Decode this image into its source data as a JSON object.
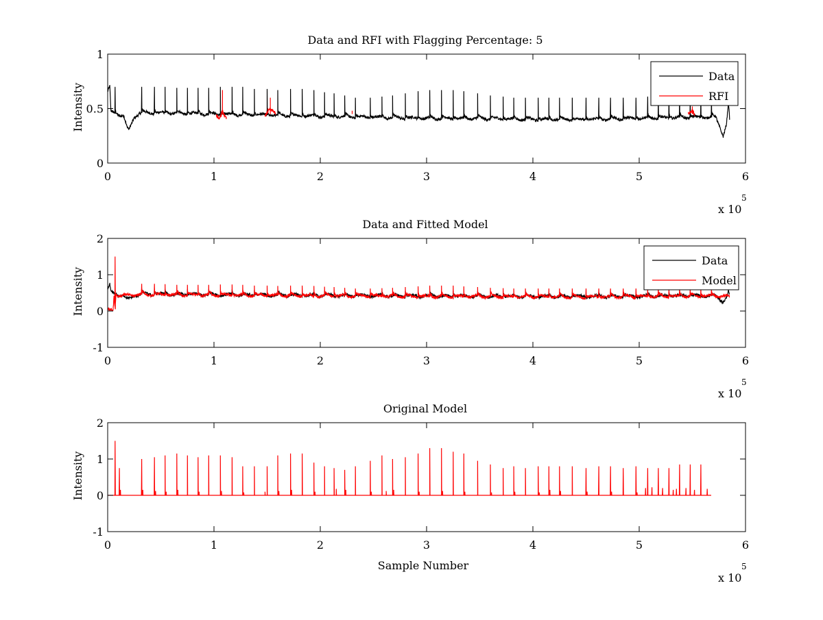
{
  "figure": {
    "background": "#ffffff"
  },
  "chart_data": [
    {
      "type": "line",
      "title": "Data and RFI with Flagging Percentage: 5",
      "xlabel": "",
      "ylabel": "Intensity",
      "xlim": [
        0,
        6
      ],
      "ylim": [
        0,
        1
      ],
      "xticks": [
        "0",
        "1",
        "2",
        "3",
        "4",
        "5",
        "6"
      ],
      "yticks": [
        "0",
        "0.5",
        "1"
      ],
      "x_exponent": {
        "base": "x 10",
        "power": "5"
      },
      "grid": false,
      "legend": {
        "placement": "top-right",
        "entries": [
          "Data",
          "RFI"
        ]
      },
      "series": [
        {
          "name": "Data",
          "color": "#000000",
          "baseline_points": [
            [
              0,
              0.66
            ],
            [
              0.02,
              0.7
            ],
            [
              0.03,
              0.47
            ],
            [
              0.1,
              0.44
            ],
            [
              0.15,
              0.44
            ],
            [
              0.18,
              0.33
            ],
            [
              0.2,
              0.3
            ],
            [
              0.25,
              0.42
            ],
            [
              0.3,
              0.46
            ],
            [
              0.5,
              0.46
            ],
            [
              1.0,
              0.45
            ],
            [
              1.5,
              0.44
            ],
            [
              2.0,
              0.43
            ],
            [
              2.5,
              0.42
            ],
            [
              3.0,
              0.41
            ],
            [
              3.5,
              0.41
            ],
            [
              4.0,
              0.4
            ],
            [
              4.5,
              0.4
            ],
            [
              5.0,
              0.41
            ],
            [
              5.5,
              0.42
            ],
            [
              5.72,
              0.42
            ],
            [
              5.76,
              0.33
            ],
            [
              5.79,
              0.25
            ],
            [
              5.82,
              0.35
            ],
            [
              5.84,
              0.55
            ],
            [
              5.85,
              0.4
            ]
          ],
          "spike_x": [
            0.07,
            0.32,
            0.44,
            0.54,
            0.65,
            0.75,
            0.85,
            0.95,
            1.06,
            1.17,
            1.27,
            1.38,
            1.5,
            1.6,
            1.72,
            1.83,
            1.94,
            2.04,
            2.13,
            2.23,
            2.33,
            2.47,
            2.58,
            2.68,
            2.8,
            2.92,
            3.03,
            3.14,
            3.25,
            3.35,
            3.48,
            3.6,
            3.72,
            3.82,
            3.93,
            4.05,
            4.15,
            4.25,
            4.37,
            4.5,
            4.62,
            4.73,
            4.85,
            4.97,
            5.08,
            5.18,
            5.28,
            5.38,
            5.48,
            5.58,
            5.68
          ],
          "spike_peak": [
            0.7,
            0.7,
            0.7,
            0.7,
            0.69,
            0.69,
            0.69,
            0.69,
            0.7,
            0.7,
            0.7,
            0.68,
            0.68,
            0.67,
            0.68,
            0.68,
            0.67,
            0.65,
            0.64,
            0.62,
            0.6,
            0.6,
            0.61,
            0.62,
            0.64,
            0.66,
            0.67,
            0.67,
            0.67,
            0.66,
            0.64,
            0.62,
            0.61,
            0.6,
            0.6,
            0.6,
            0.6,
            0.6,
            0.6,
            0.6,
            0.6,
            0.6,
            0.6,
            0.6,
            0.61,
            0.62,
            0.62,
            0.62,
            0.6,
            0.6,
            0.6
          ]
        },
        {
          "name": "RFI",
          "color": "#ff0000",
          "segments": [
            [
              [
                1.02,
                0.44
              ],
              [
                1.04,
                0.41
              ],
              [
                1.06,
                0.42
              ],
              [
                1.08,
                0.48
              ],
              [
                1.1,
                0.43
              ],
              [
                1.12,
                0.41
              ]
            ],
            [
              [
                1.48,
                0.43
              ],
              [
                1.5,
                0.46
              ],
              [
                1.52,
                0.5
              ],
              [
                1.55,
                0.48
              ],
              [
                1.58,
                0.46
              ]
            ],
            [
              [
                5.46,
                0.45
              ],
              [
                5.5,
                0.48
              ],
              [
                5.52,
                0.44
              ]
            ]
          ],
          "spike_x": [
            1.08,
            1.53,
            2.3,
            5.5
          ],
          "spike_peak": [
            0.67,
            0.6,
            0.48,
            0.52
          ]
        }
      ]
    },
    {
      "type": "line",
      "title": "Data and Fitted Model",
      "xlabel": "",
      "ylabel": "Intensity",
      "xlim": [
        0,
        6
      ],
      "ylim": [
        -1,
        2
      ],
      "xticks": [
        "0",
        "1",
        "2",
        "3",
        "4",
        "5",
        "6"
      ],
      "yticks": [
        "-1",
        "0",
        "1",
        "2"
      ],
      "x_exponent": {
        "base": "x 10",
        "power": "5"
      },
      "grid": false,
      "legend": {
        "placement": "top-right",
        "entries": [
          "Data",
          "Model"
        ]
      },
      "series": [
        {
          "name": "Data",
          "color": "#000000",
          "baseline_points": [
            [
              0,
              0.62
            ],
            [
              0.02,
              0.72
            ],
            [
              0.03,
              0.5
            ],
            [
              0.1,
              0.44
            ],
            [
              0.15,
              0.44
            ],
            [
              0.18,
              0.34
            ],
            [
              0.2,
              0.32
            ],
            [
              0.25,
              0.42
            ],
            [
              0.3,
              0.46
            ],
            [
              0.5,
              0.46
            ],
            [
              1.0,
              0.45
            ],
            [
              1.5,
              0.44
            ],
            [
              2.0,
              0.43
            ],
            [
              2.5,
              0.42
            ],
            [
              3.0,
              0.41
            ],
            [
              3.5,
              0.41
            ],
            [
              4.0,
              0.4
            ],
            [
              4.5,
              0.4
            ],
            [
              5.0,
              0.41
            ],
            [
              5.5,
              0.42
            ],
            [
              5.72,
              0.42
            ],
            [
              5.76,
              0.33
            ],
            [
              5.79,
              0.26
            ],
            [
              5.82,
              0.36
            ],
            [
              5.84,
              0.52
            ],
            [
              5.85,
              0.42
            ]
          ],
          "spike_x": [
            0.32,
            0.44,
            0.54,
            0.75,
            0.95,
            1.17,
            1.38,
            1.6,
            1.83,
            2.04,
            2.33,
            2.58,
            2.8,
            3.03,
            3.25,
            3.48,
            3.72,
            3.93,
            4.15,
            4.37,
            4.62,
            4.85,
            5.08,
            5.28,
            5.48
          ],
          "spike_peak": [
            0.62,
            0.62,
            0.61,
            0.6,
            0.6,
            0.6,
            0.58,
            0.57,
            0.57,
            0.56,
            0.54,
            0.54,
            0.55,
            0.56,
            0.56,
            0.55,
            0.53,
            0.52,
            0.52,
            0.52,
            0.52,
            0.52,
            0.53,
            0.53,
            0.53
          ]
        },
        {
          "name": "Model",
          "color": "#ff0000",
          "baseline_points": [
            [
              0,
              0.02
            ],
            [
              0.05,
              0.02
            ],
            [
              0.06,
              0.4
            ],
            [
              0.07,
              0.05
            ],
            [
              0.08,
              0.45
            ],
            [
              0.1,
              0.42
            ],
            [
              0.3,
              0.45
            ],
            [
              0.5,
              0.45
            ],
            [
              1.0,
              0.44
            ],
            [
              1.5,
              0.43
            ],
            [
              2.0,
              0.42
            ],
            [
              2.5,
              0.41
            ],
            [
              3.0,
              0.4
            ],
            [
              3.5,
              0.4
            ],
            [
              4.0,
              0.39
            ],
            [
              4.5,
              0.39
            ],
            [
              5.0,
              0.4
            ],
            [
              5.5,
              0.41
            ],
            [
              5.72,
              0.41
            ],
            [
              5.85,
              0.41
            ]
          ],
          "spike_x": [
            0.07,
            0.32,
            0.44,
            0.54,
            0.65,
            0.75,
            0.85,
            0.95,
            1.06,
            1.17,
            1.27,
            1.38,
            1.5,
            1.6,
            1.72,
            1.83,
            1.94,
            2.04,
            2.13,
            2.23,
            2.33,
            2.47,
            2.58,
            2.68,
            2.8,
            2.92,
            3.03,
            3.14,
            3.25,
            3.35,
            3.48,
            3.6,
            3.72,
            3.82,
            3.93,
            4.05,
            4.15,
            4.25,
            4.37,
            4.5,
            4.62,
            4.73,
            4.85,
            4.97,
            5.08,
            5.18,
            5.28,
            5.38,
            5.48,
            5.58,
            5.68
          ],
          "spike_peak": [
            1.5,
            0.75,
            0.75,
            0.74,
            0.72,
            0.72,
            0.72,
            0.72,
            0.73,
            0.73,
            0.72,
            0.7,
            0.7,
            0.69,
            0.7,
            0.7,
            0.69,
            0.67,
            0.66,
            0.64,
            0.62,
            0.62,
            0.63,
            0.64,
            0.66,
            0.68,
            0.7,
            0.7,
            0.7,
            0.68,
            0.66,
            0.64,
            0.63,
            0.62,
            0.62,
            0.62,
            0.62,
            0.62,
            0.62,
            0.62,
            0.62,
            0.62,
            0.62,
            0.62,
            0.63,
            0.64,
            0.64,
            0.64,
            0.62,
            0.62,
            0.62
          ]
        }
      ]
    },
    {
      "type": "line",
      "title": "Original Model",
      "xlabel": "Sample Number",
      "ylabel": "Intensity",
      "xlim": [
        0,
        6
      ],
      "ylim": [
        -1,
        2
      ],
      "xticks": [
        "0",
        "1",
        "2",
        "3",
        "4",
        "5",
        "6"
      ],
      "yticks": [
        "-1",
        "0",
        "1",
        "2"
      ],
      "x_exponent": {
        "base": "x 10",
        "power": "5"
      },
      "grid": false,
      "legend": null,
      "series": [
        {
          "name": "",
          "color": "#ff0000",
          "baseline_points": [
            [
              0,
              0
            ],
            [
              5.85,
              0
            ]
          ],
          "spike_x": [
            0.07,
            0.11,
            0.32,
            0.44,
            0.54,
            0.65,
            0.75,
            0.85,
            0.95,
            1.06,
            1.17,
            1.27,
            1.38,
            1.5,
            1.6,
            1.72,
            1.83,
            1.94,
            2.04,
            2.13,
            2.23,
            2.33,
            2.47,
            2.58,
            2.68,
            2.8,
            2.92,
            3.03,
            3.14,
            3.25,
            3.35,
            3.48,
            3.6,
            3.72,
            3.82,
            3.93,
            4.05,
            4.15,
            4.25,
            4.37,
            4.5,
            4.62,
            4.73,
            4.85,
            4.97,
            5.08,
            5.18,
            5.28,
            5.38,
            5.48,
            5.58,
            5.68
          ],
          "spike_peak": [
            1.5,
            0.75,
            1.0,
            1.05,
            1.1,
            1.15,
            1.1,
            1.05,
            1.1,
            1.1,
            1.05,
            0.8,
            0.8,
            0.8,
            1.1,
            1.15,
            1.15,
            0.9,
            0.8,
            0.75,
            0.7,
            0.8,
            0.95,
            1.1,
            1.0,
            1.05,
            1.15,
            1.3,
            1.3,
            1.2,
            1.15,
            0.95,
            0.85,
            0.75,
            0.8,
            0.75,
            0.8,
            0.8,
            0.8,
            0.8,
            0.75,
            0.8,
            0.8,
            0.75,
            0.8,
            0.75,
            0.75,
            0.75,
            0.85,
            0.85,
            0.85
          ],
          "secondary_spike_x": [
            0.12,
            0.33,
            0.45,
            0.55,
            0.66,
            0.86,
            1.07,
            1.28,
            1.48,
            1.61,
            1.73,
            1.95,
            2.15,
            2.24,
            2.48,
            2.62,
            2.69,
            2.93,
            3.15,
            3.36,
            3.61,
            3.83,
            4.06,
            4.16,
            4.26,
            4.51,
            4.74,
            4.98,
            5.06,
            5.12,
            5.22,
            5.32,
            5.35,
            5.44,
            5.52,
            5.64
          ],
          "secondary_spike_peak": [
            0.15,
            0.15,
            0.12,
            0.1,
            0.15,
            0.1,
            0.12,
            0.08,
            0.1,
            0.12,
            0.15,
            0.1,
            0.18,
            0.15,
            0.1,
            0.12,
            0.15,
            0.1,
            0.12,
            0.1,
            0.08,
            0.1,
            0.08,
            0.15,
            0.12,
            0.1,
            0.1,
            0.08,
            0.2,
            0.22,
            0.2,
            0.15,
            0.18,
            0.2,
            0.15,
            0.18
          ]
        }
      ]
    }
  ]
}
